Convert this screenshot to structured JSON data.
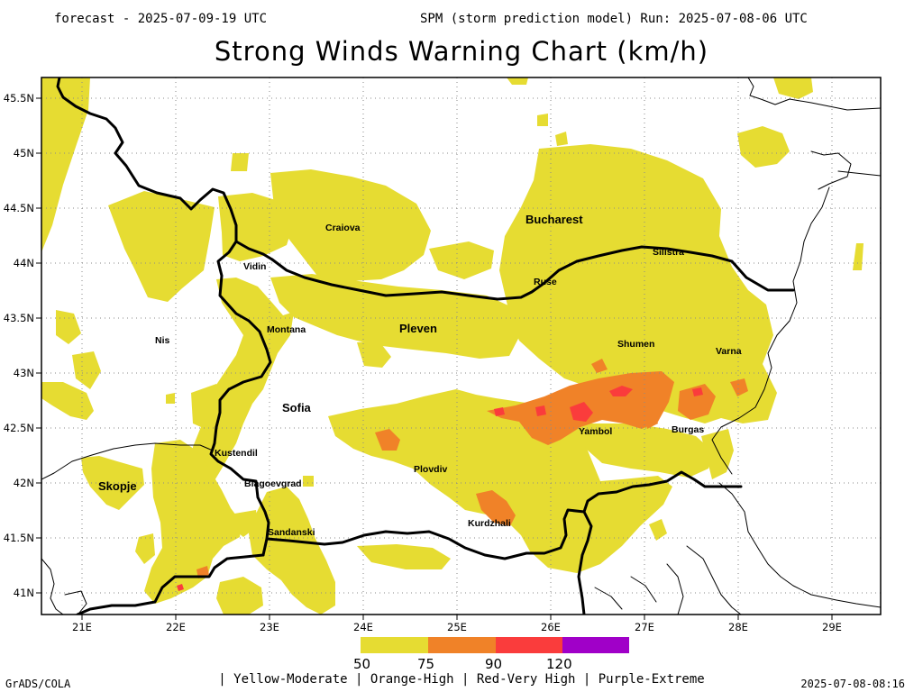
{
  "header": {
    "forecast": "forecast - 2025-07-09-19 UTC",
    "run": "SPM (storm prediction model) Run: 2025-07-08-06 UTC"
  },
  "title": "Strong Winds Warning Chart (km/h)",
  "axes": {
    "lat_labels": [
      "45.5N",
      "45N",
      "44.5N",
      "44N",
      "43.5N",
      "43N",
      "42.5N",
      "42N",
      "41.5N",
      "41N"
    ],
    "lon_labels": [
      "21E",
      "22E",
      "23E",
      "24E",
      "25E",
      "26E",
      "27E",
      "28E",
      "29E"
    ]
  },
  "cities": [
    {
      "name": "Bucharest",
      "lon": 26.1,
      "lat": 44.43
    },
    {
      "name": "Craiova",
      "lon": 23.8,
      "lat": 44.32
    },
    {
      "name": "Silistra",
      "lon": 27.27,
      "lat": 44.12
    },
    {
      "name": "Vidin",
      "lon": 22.88,
      "lat": 44.0
    },
    {
      "name": "Ruse",
      "lon": 25.97,
      "lat": 43.84
    },
    {
      "name": "Pleven",
      "lon": 24.62,
      "lat": 43.42
    },
    {
      "name": "Montana",
      "lon": 23.23,
      "lat": 43.41
    },
    {
      "name": "Nis",
      "lon": 21.9,
      "lat": 43.32
    },
    {
      "name": "Shumen",
      "lon": 26.93,
      "lat": 43.27
    },
    {
      "name": "Varna",
      "lon": 27.91,
      "lat": 43.2
    },
    {
      "name": "Sofia",
      "lon": 23.33,
      "lat": 42.69
    },
    {
      "name": "Yambol",
      "lon": 26.5,
      "lat": 42.48
    },
    {
      "name": "Burgas",
      "lon": 27.47,
      "lat": 42.5
    },
    {
      "name": "Kustendil",
      "lon": 22.69,
      "lat": 42.28
    },
    {
      "name": "Plovdiv",
      "lon": 24.75,
      "lat": 42.14
    },
    {
      "name": "Skopje",
      "lon": 21.43,
      "lat": 41.99
    },
    {
      "name": "Blagoevgrad",
      "lon": 23.09,
      "lat": 42.02
    },
    {
      "name": "Kurdzhali",
      "lon": 25.38,
      "lat": 41.64
    },
    {
      "name": "Sandanski",
      "lon": 23.28,
      "lat": 41.56
    }
  ],
  "legend": {
    "levels": [
      "50",
      "75",
      "90",
      "120"
    ],
    "colors": [
      "#e6dc32",
      "#f08228",
      "#fa3c3c",
      "#a000c8"
    ],
    "caption": "| Yellow-Moderate | Orange-High | Red-Very High | Purple-Extreme"
  },
  "footer": {
    "left": "GrADS/COLA",
    "right": "2025-07-08-08:16"
  }
}
